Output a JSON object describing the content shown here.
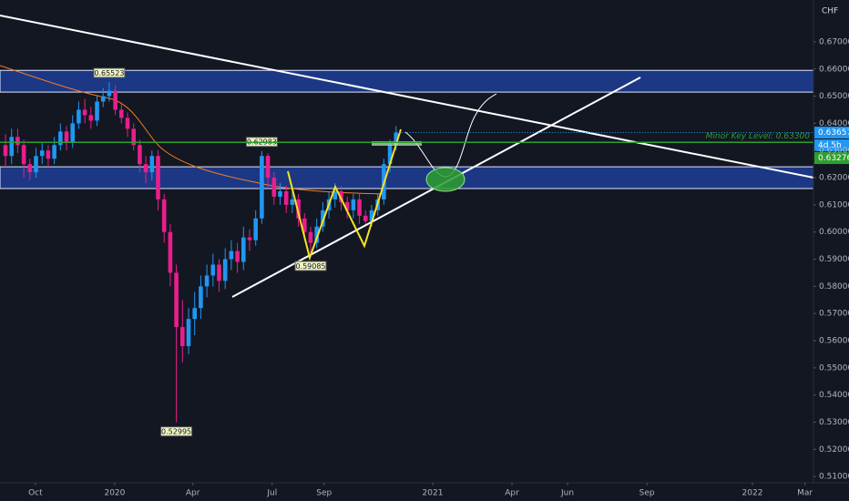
{
  "chart_data": {
    "type": "candlestick",
    "currency": "CHF",
    "categories": [
      null,
      null,
      null,
      null,
      null,
      null,
      null,
      null,
      null,
      null,
      null,
      null,
      null,
      null,
      null,
      null,
      null,
      null,
      null,
      null,
      null,
      null,
      null,
      null,
      null,
      null,
      null,
      null,
      null,
      null,
      null,
      null,
      null,
      null,
      null,
      null,
      null,
      null,
      null,
      null,
      null,
      null,
      null,
      null,
      null,
      null,
      null,
      null,
      null,
      null,
      null,
      null,
      null,
      null,
      null,
      null,
      null,
      null,
      null,
      null,
      null,
      null,
      null,
      null,
      null
    ],
    "open": [
      0.632,
      0.628,
      0.635,
      0.632,
      0.625,
      0.622,
      0.628,
      0.63,
      0.627,
      0.632,
      0.637,
      0.633,
      0.64,
      0.645,
      0.643,
      0.641,
      0.648,
      0.65,
      0.652,
      0.645,
      0.642,
      0.638,
      0.632,
      0.625,
      0.622,
      0.628,
      0.612,
      0.6,
      0.585,
      0.565,
      0.558,
      0.568,
      0.572,
      0.58,
      0.584,
      0.588,
      0.582,
      0.59,
      0.593,
      0.589,
      0.598,
      0.597,
      0.605,
      0.628,
      0.62,
      0.613,
      0.615,
      0.61,
      0.612,
      0.605,
      0.6,
      0.596,
      0.602,
      0.608,
      0.612,
      0.615,
      0.611,
      0.608,
      0.612,
      0.606,
      0.604,
      0.608,
      0.612,
      0.625,
      0.632
    ],
    "high": [
      0.636,
      0.638,
      0.638,
      0.634,
      0.627,
      0.631,
      0.633,
      0.632,
      0.635,
      0.64,
      0.639,
      0.643,
      0.648,
      0.649,
      0.646,
      0.65,
      0.653,
      0.65523,
      0.654,
      0.647,
      0.644,
      0.64,
      0.634,
      0.628,
      0.63,
      0.63,
      0.614,
      0.603,
      0.588,
      0.575,
      0.572,
      0.578,
      0.584,
      0.588,
      0.592,
      0.59,
      0.594,
      0.597,
      0.596,
      0.602,
      0.601,
      0.608,
      0.62983,
      0.629,
      0.622,
      0.618,
      0.617,
      0.615,
      0.614,
      0.607,
      0.602,
      0.605,
      0.611,
      0.615,
      0.618,
      0.617,
      0.613,
      0.614,
      0.614,
      0.608,
      0.61,
      0.614,
      0.627,
      0.634,
      0.639
    ],
    "low": [
      0.624,
      0.625,
      0.629,
      0.62,
      0.619,
      0.62,
      0.625,
      0.624,
      0.625,
      0.63,
      0.63,
      0.631,
      0.638,
      0.64,
      0.638,
      0.639,
      0.646,
      0.648,
      0.643,
      0.64,
      0.635,
      0.63,
      0.622,
      0.618,
      0.619,
      0.608,
      0.596,
      0.58,
      0.52995,
      0.552,
      0.555,
      0.562,
      0.568,
      0.576,
      0.58,
      0.578,
      0.579,
      0.586,
      0.585,
      0.586,
      0.593,
      0.595,
      0.603,
      0.616,
      0.61,
      0.61,
      0.607,
      0.607,
      0.602,
      0.597,
      0.59085,
      0.594,
      0.6,
      0.605,
      0.609,
      0.608,
      0.605,
      0.605,
      0.603,
      0.602,
      0.602,
      0.606,
      0.61,
      0.622,
      0.63
    ],
    "close": [
      0.628,
      0.635,
      0.632,
      0.625,
      0.622,
      0.628,
      0.63,
      0.627,
      0.632,
      0.637,
      0.633,
      0.64,
      0.645,
      0.643,
      0.641,
      0.648,
      0.65,
      0.652,
      0.645,
      0.642,
      0.638,
      0.632,
      0.625,
      0.622,
      0.628,
      0.612,
      0.6,
      0.585,
      0.565,
      0.558,
      0.568,
      0.572,
      0.58,
      0.584,
      0.588,
      0.582,
      0.59,
      0.593,
      0.589,
      0.598,
      0.597,
      0.605,
      0.628,
      0.62,
      0.613,
      0.615,
      0.61,
      0.612,
      0.605,
      0.6,
      0.596,
      0.602,
      0.608,
      0.612,
      0.615,
      0.611,
      0.608,
      0.612,
      0.606,
      0.604,
      0.608,
      0.612,
      0.625,
      0.632,
      0.6366
    ],
    "up_color": "#2196f3",
    "down_color": "#e91e8c",
    "markers": [
      {
        "index": 17,
        "side": "high",
        "value": 0.65523
      },
      {
        "index": 42,
        "side": "high",
        "value": 0.62983
      },
      {
        "index": 28,
        "side": "low",
        "value": 0.52995
      },
      {
        "index": 50,
        "side": "low",
        "value": 0.59085
      }
    ],
    "key_level": {
      "label": "Minor Key Level: 0.63300",
      "value": 0.633,
      "color": "#2e9e2e"
    },
    "zones": [
      {
        "from": 0.6515,
        "to": 0.6595
      },
      {
        "from": 0.616,
        "to": 0.624
      }
    ],
    "price_tags": [
      {
        "label": "0.63657",
        "color": "#2196f3"
      },
      {
        "label": "4d 5h",
        "color": "#2196f3"
      },
      {
        "label": "0.63276",
        "color": "#2e9e2e"
      }
    ],
    "xlim": [
      -0.9,
      132.4
    ],
    "xticks": [
      {
        "value": 4.9,
        "label": "Oct"
      },
      {
        "value": 17.9,
        "label": "2020"
      },
      {
        "value": 30.7,
        "label": "Apr"
      },
      {
        "value": 43.7,
        "label": "Jul"
      },
      {
        "value": 52.2,
        "label": "Sep"
      },
      {
        "value": 70,
        "label": "2021"
      },
      {
        "value": 83,
        "label": "Apr"
      },
      {
        "value": 92.1,
        "label": "Jun"
      },
      {
        "value": 105.1,
        "label": "Sep"
      },
      {
        "value": 122.4,
        "label": "2022"
      },
      {
        "value": 131,
        "label": "Mar"
      }
    ],
    "ylim": [
      0.5077,
      0.6854
    ],
    "yticks": [
      {
        "value": 0.51,
        "label": "0.51000"
      },
      {
        "value": 0.52,
        "label": "0.52000"
      },
      {
        "value": 0.53,
        "label": "0.53000"
      },
      {
        "value": 0.54,
        "label": "0.54000"
      },
      {
        "value": 0.55,
        "label": "0.55000"
      },
      {
        "value": 0.56,
        "label": "0.56000"
      },
      {
        "value": 0.57,
        "label": "0.57000"
      },
      {
        "value": 0.58,
        "label": "0.58000"
      },
      {
        "value": 0.59,
        "label": "0.59000"
      },
      {
        "value": 0.6,
        "label": "0.60000"
      },
      {
        "value": 0.61,
        "label": "0.61000"
      },
      {
        "value": 0.62,
        "label": "0.62000"
      },
      {
        "value": 0.63,
        "label": "0.63000"
      },
      {
        "value": 0.64,
        "label": "0.64000"
      },
      {
        "value": 0.65,
        "label": "0.65000"
      },
      {
        "value": 0.66,
        "label": "0.66000"
      },
      {
        "value": 0.67,
        "label": "0.67000"
      }
    ],
    "grid": false
  }
}
